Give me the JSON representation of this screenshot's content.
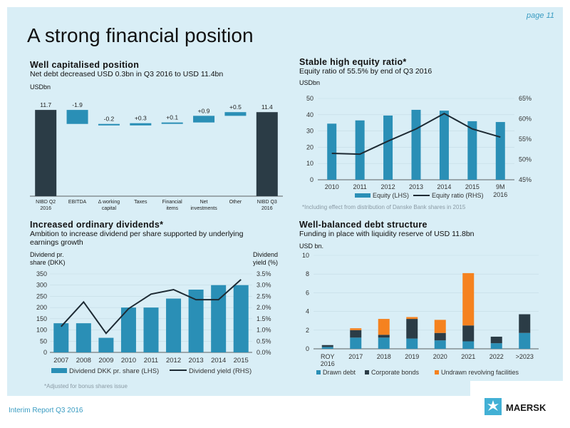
{
  "page": {
    "label": "page 11",
    "title": "A strong financial position",
    "footer": "Interim Report Q3 2016",
    "logo_text": "MAERSK"
  },
  "colors": {
    "bar": "#2a8fb6",
    "dark": "#2b3c46",
    "orange": "#f5821f",
    "line": "#1d2a33",
    "panel": "#d9eef6"
  },
  "sections": {
    "tl": {
      "title": "Well capitalised position",
      "subtitle": "Net debt decreased USD 0.3bn in Q3 2016 to USD 11.4bn",
      "unit": "USDbn"
    },
    "tr": {
      "title": "Stable high equity ratio*",
      "subtitle": "Equity ratio of 55.5% by end of Q3 2016",
      "unit": "USDbn",
      "note": "*Including effect from distribution of Danske Bank shares in 2015"
    },
    "bl": {
      "title": "Increased ordinary dividends*",
      "subtitle": "Ambition to increase dividend per share supported by underlying earnings growth",
      "left_axis": "Dividend pr. share (DKK)",
      "right_axis": "Dividend yield (%)",
      "note": "*Adjusted for bonus shares issue"
    },
    "br": {
      "title": "Well-balanced debt structure",
      "subtitle": "Funding in place with liquidity reserve of USD 11.8bn",
      "unit": "USD bn."
    }
  },
  "chart_data": [
    {
      "type": "bar",
      "id": "waterfall",
      "subtype": "waterfall",
      "categories": [
        "NIBD Q2 2016",
        "EBITDA",
        "Δ working capital",
        "Taxes",
        "Financial items",
        "Net investments",
        "Other",
        "NIBD Q3 2016"
      ],
      "category_lines": [
        [
          "NIBD Q2",
          "2016"
        ],
        [
          "EBITDA"
        ],
        [
          "Δ working",
          "capital"
        ],
        [
          "Taxes"
        ],
        [
          "Financial",
          "items"
        ],
        [
          "Net",
          "investments"
        ],
        [
          "Other"
        ],
        [
          "NIBD Q3",
          "2016"
        ]
      ],
      "values": [
        11.7,
        -1.9,
        -0.2,
        0.3,
        0.1,
        0.9,
        0.5,
        11.4
      ],
      "labels": [
        "11.7",
        "-1.9",
        "-0.2",
        "+0.3",
        "+0.1",
        "+0.9",
        "+0.5",
        "11.4"
      ],
      "ylabel": "USDbn"
    },
    {
      "type": "bar",
      "id": "equity",
      "categories": [
        "2010",
        "2011",
        "2012",
        "2013",
        "2014",
        "2015",
        "9M 2016"
      ],
      "series": [
        {
          "name": "Equity (LHS)",
          "values": [
            34.5,
            36.5,
            39.5,
            43,
            42.5,
            36,
            35.5
          ]
        },
        {
          "name": "Equity ratio (RHS)",
          "type": "line",
          "values": [
            51.5,
            51.3,
            54.5,
            57.5,
            61.3,
            57.5,
            55.5
          ]
        }
      ],
      "ylim": [
        0,
        50
      ],
      "yticks": [
        0,
        10,
        20,
        30,
        40,
        50
      ],
      "y2lim": [
        45,
        65
      ],
      "y2ticks": [
        "45%",
        "50%",
        "55%",
        "60%",
        "65%"
      ],
      "ylabel": "USDbn"
    },
    {
      "type": "bar",
      "id": "dividend",
      "categories": [
        "2007",
        "2008",
        "2009",
        "2010",
        "2011",
        "2012",
        "2013",
        "2014",
        "2015"
      ],
      "series": [
        {
          "name": "Dividend DKK pr. share (LHS)",
          "values": [
            130,
            130,
            65,
            200,
            200,
            240,
            280,
            300,
            300
          ]
        },
        {
          "name": "Dividend yield (RHS)",
          "type": "line",
          "values": [
            1.15,
            2.25,
            0.85,
            1.95,
            2.6,
            2.8,
            2.35,
            2.35,
            3.25
          ]
        }
      ],
      "ylim": [
        0,
        350
      ],
      "yticks": [
        0,
        50,
        100,
        150,
        200,
        250,
        300,
        350
      ],
      "y2lim": [
        0,
        3.5
      ],
      "y2ticks": [
        "0.0%",
        "0.5%",
        "1.0%",
        "1.5%",
        "2.0%",
        "2.5%",
        "3.0%",
        "3.5%"
      ]
    },
    {
      "type": "bar",
      "id": "debt",
      "stacked": true,
      "categories": [
        "ROY 2016",
        "2017",
        "2018",
        "2019",
        "2020",
        "2021",
        "2022",
        ">2023"
      ],
      "category_lines": [
        [
          "ROY",
          "2016"
        ],
        [
          "2017"
        ],
        [
          "2018"
        ],
        [
          "2019"
        ],
        [
          "2020"
        ],
        [
          "2021"
        ],
        [
          "2022"
        ],
        [
          ">2023"
        ]
      ],
      "series": [
        {
          "name": "Drawn debt",
          "values": [
            0.2,
            1.2,
            1.2,
            1.1,
            0.9,
            0.8,
            0.6,
            1.7
          ]
        },
        {
          "name": "Corporate bonds",
          "values": [
            0.2,
            0.8,
            0.3,
            2.1,
            0.8,
            1.7,
            0.7,
            2.0
          ]
        },
        {
          "name": "Undrawn revolving facilities",
          "values": [
            0,
            0.2,
            1.7,
            0.2,
            1.4,
            5.6,
            0,
            0
          ]
        }
      ],
      "ylim": [
        0,
        10
      ],
      "yticks": [
        0,
        2,
        4,
        6,
        8,
        10
      ],
      "ylabel": "USD bn."
    }
  ]
}
